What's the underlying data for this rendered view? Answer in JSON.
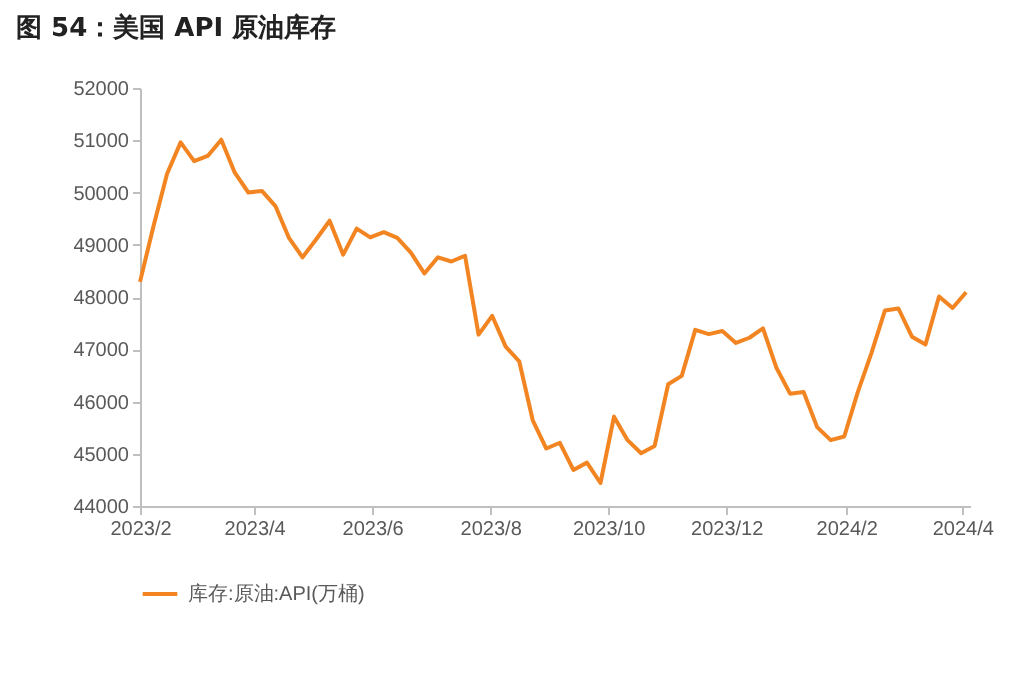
{
  "chart_data": {
    "type": "line",
    "title": "图 54：美国 API 原油库存",
    "x": [
      "2023-02-01",
      "2023-02-08",
      "2023-02-15",
      "2023-02-22",
      "2023-03-01",
      "2023-03-08",
      "2023-03-15",
      "2023-03-22",
      "2023-03-29",
      "2023-04-05",
      "2023-04-12",
      "2023-04-19",
      "2023-04-26",
      "2023-05-03",
      "2023-05-10",
      "2023-05-17",
      "2023-05-24",
      "2023-05-31",
      "2023-06-07",
      "2023-06-14",
      "2023-06-21",
      "2023-06-28",
      "2023-07-05",
      "2023-07-12",
      "2023-07-19",
      "2023-07-26",
      "2023-08-02",
      "2023-08-09",
      "2023-08-16",
      "2023-08-23",
      "2023-08-30",
      "2023-09-06",
      "2023-09-13",
      "2023-09-20",
      "2023-09-27",
      "2023-10-04",
      "2023-10-11",
      "2023-10-18",
      "2023-10-25",
      "2023-11-01",
      "2023-11-08",
      "2023-11-15",
      "2023-11-22",
      "2023-11-29",
      "2023-12-06",
      "2023-12-13",
      "2023-12-20",
      "2023-12-27",
      "2024-01-03",
      "2024-01-10",
      "2024-01-17",
      "2024-01-24",
      "2024-01-31",
      "2024-02-07",
      "2024-02-14",
      "2024-02-21",
      "2024-02-28",
      "2024-03-06",
      "2024-03-13",
      "2024-03-20",
      "2024-03-27",
      "2024-04-03"
    ],
    "series": [
      {
        "name": "库存:原油:API(万桶)",
        "color": "#f28522",
        "values": [
          48290,
          49360,
          50360,
          50960,
          50600,
          50700,
          51010,
          50380,
          50000,
          50030,
          49740,
          49130,
          48760,
          49100,
          49460,
          48810,
          49310,
          49140,
          49240,
          49130,
          48850,
          48450,
          48760,
          48680,
          48790,
          47280,
          47640,
          47050,
          46770,
          45640,
          45100,
          45210,
          44690,
          44830,
          44440,
          45710,
          45260,
          45010,
          45150,
          46330,
          46490,
          47370,
          47290,
          47350,
          47120,
          47220,
          47400,
          46640,
          46150,
          46180,
          45510,
          45260,
          45330,
          46180,
          46920,
          47740,
          47780,
          47240,
          47090,
          48010,
          47790,
          48090
        ]
      }
    ],
    "xlim": [
      "2023-02-01",
      "2024-04-05"
    ],
    "xticks": [
      {
        "value": "2023-02-01",
        "label": "2023/2"
      },
      {
        "value": "2023-04-01",
        "label": "2023/4"
      },
      {
        "value": "2023-06-01",
        "label": "2023/6"
      },
      {
        "value": "2023-08-01",
        "label": "2023/8"
      },
      {
        "value": "2023-10-01",
        "label": "2023/10"
      },
      {
        "value": "2023-12-01",
        "label": "2023/12"
      },
      {
        "value": "2024-02-01",
        "label": "2024/2"
      },
      {
        "value": "2024-04-01",
        "label": "2024/4"
      }
    ],
    "ylim": [
      44000,
      52000
    ],
    "yticks": [
      44000,
      45000,
      46000,
      47000,
      48000,
      49000,
      50000,
      51000,
      52000
    ],
    "grid": false,
    "legend": "bottom",
    "marker": "none",
    "line_style": "solid"
  }
}
